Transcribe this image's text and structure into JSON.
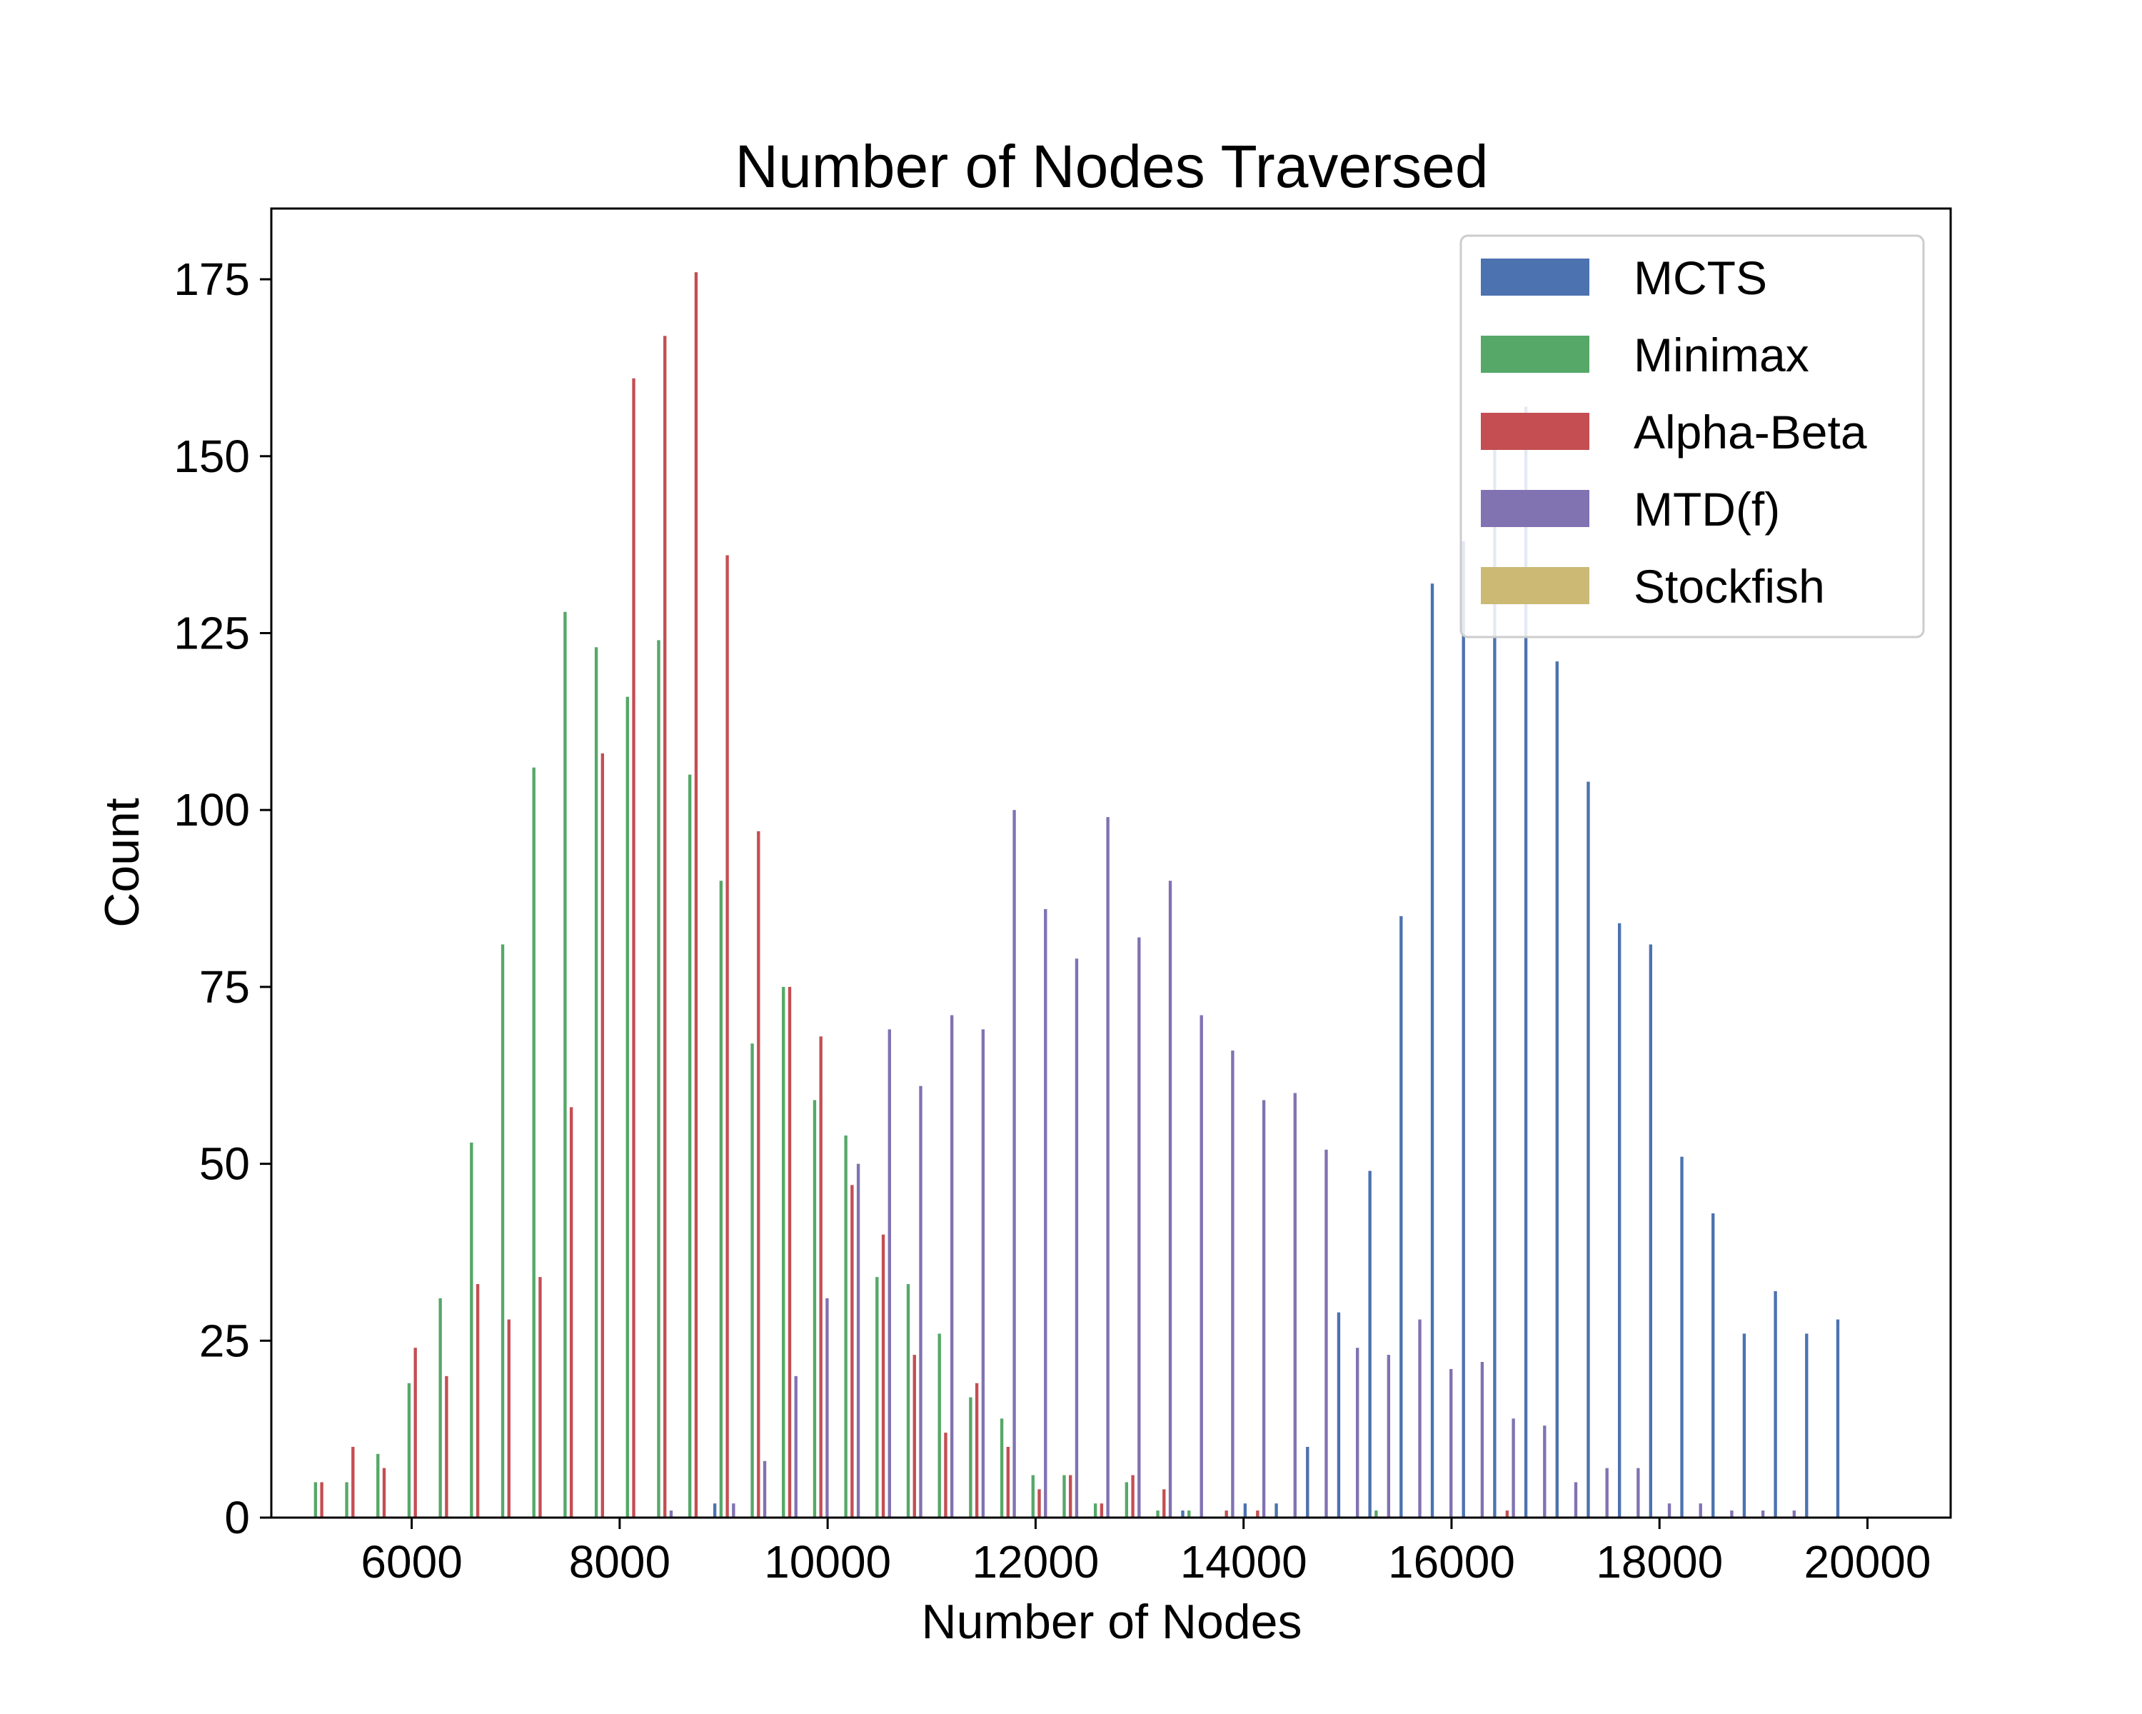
{
  "chart_data": {
    "type": "bar",
    "title": "Number of Nodes Traversed",
    "xlabel": "Number of Nodes",
    "ylabel": "Count",
    "xlim": [
      4650,
      20800
    ],
    "ylim": [
      0,
      185
    ],
    "xticks": [
      6000,
      8000,
      10000,
      12000,
      14000,
      16000,
      18000,
      20000
    ],
    "yticks": [
      0,
      25,
      50,
      75,
      100,
      125,
      150,
      175
    ],
    "grid": false,
    "legend_position": "top-right",
    "bin_start": 5000,
    "bin_width": 300,
    "series": [
      {
        "name": "MCTS",
        "color": "#4c72b0",
        "values": [
          0,
          0,
          0,
          0,
          0,
          0,
          0,
          0,
          0,
          0,
          0,
          0,
          0,
          2,
          0,
          0,
          0,
          0,
          0,
          0,
          0,
          0,
          0,
          0,
          0,
          0,
          0,
          0,
          1,
          0,
          2,
          2,
          10,
          29,
          49,
          85,
          132,
          138,
          155,
          157,
          121,
          104,
          84,
          81,
          51,
          43,
          26,
          32,
          26,
          28
        ]
      },
      {
        "name": "Minimax",
        "color": "#55a868",
        "values": [
          5,
          5,
          9,
          19,
          31,
          53,
          81,
          106,
          128,
          123,
          116,
          124,
          105,
          90,
          67,
          75,
          59,
          54,
          34,
          33,
          26,
          17,
          14,
          6,
          6,
          2,
          5,
          1,
          1,
          0,
          0,
          0,
          0,
          0,
          1,
          0,
          0,
          0,
          0,
          0,
          0,
          0,
          0,
          0,
          0,
          0,
          0,
          0,
          0,
          0
        ]
      },
      {
        "name": "Alpha-Beta",
        "color": "#c44e52",
        "values": [
          5,
          10,
          7,
          24,
          20,
          33,
          28,
          34,
          58,
          108,
          161,
          167,
          176,
          136,
          97,
          75,
          68,
          47,
          40,
          23,
          12,
          19,
          10,
          4,
          6,
          2,
          6,
          4,
          0,
          1,
          1,
          0,
          0,
          0,
          0,
          0,
          0,
          0,
          1,
          0,
          0,
          0,
          0,
          0,
          0,
          0,
          0,
          0,
          0,
          0
        ]
      },
      {
        "name": "MTD(f)",
        "color": "#8172b2",
        "values": [
          0,
          0,
          0,
          0,
          0,
          0,
          0,
          0,
          0,
          0,
          0,
          1,
          0,
          2,
          8,
          20,
          31,
          50,
          69,
          61,
          71,
          69,
          100,
          86,
          79,
          99,
          82,
          90,
          71,
          66,
          59,
          60,
          52,
          24,
          23,
          28,
          21,
          22,
          14,
          13,
          5,
          7,
          7,
          2,
          2,
          1,
          1,
          1,
          0,
          0
        ]
      },
      {
        "name": "Stockfish",
        "color": "#ccb974",
        "values": [
          0,
          0,
          0,
          0,
          0,
          0,
          0,
          0,
          0,
          0,
          0,
          0,
          0,
          0,
          0,
          0,
          0,
          0,
          0,
          0,
          0,
          0,
          0,
          0,
          0,
          0,
          0,
          0,
          0,
          0,
          0,
          0,
          0,
          0,
          0,
          0,
          0,
          0,
          0,
          0,
          0,
          0,
          0,
          0,
          0,
          0,
          0,
          0,
          0,
          0
        ]
      }
    ]
  }
}
